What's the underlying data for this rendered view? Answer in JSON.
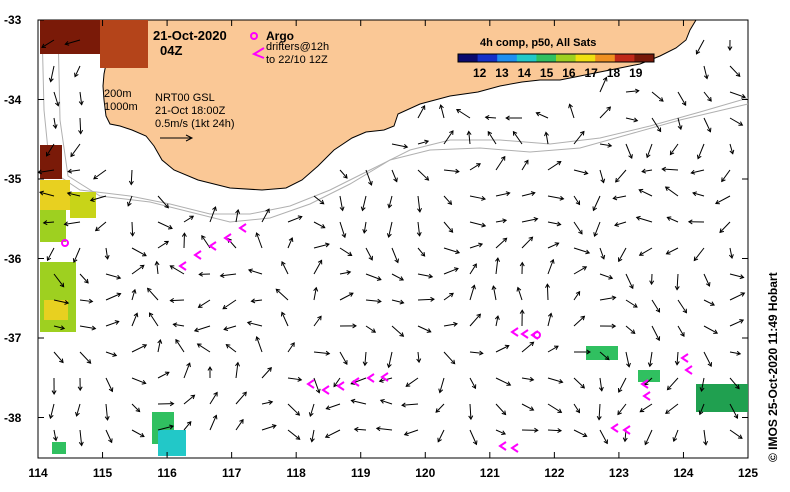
{
  "header": {
    "date": "21-Oct-2020",
    "time": "04Z"
  },
  "argo_legend": {
    "title": "Argo",
    "line1": "drifters@12h",
    "line2": "to 22/10 12Z"
  },
  "colorbar": {
    "title": "4h comp, p50, All Sats",
    "ticks": [
      "12",
      "13",
      "14",
      "15",
      "16",
      "17",
      "18",
      "19"
    ],
    "colors": [
      "#0a0a6e",
      "#1530c8",
      "#1f8ff0",
      "#22c8c8",
      "#30c060",
      "#9ed020",
      "#f0e010",
      "#f09020",
      "#c02818",
      "#781808"
    ]
  },
  "contour_legend": {
    "depth1": "200m",
    "depth2": "1000m"
  },
  "current_info": {
    "product": "NRT00 GSL",
    "datetime": "21-Oct 18:00Z",
    "scale": "0.5m/s (1kt 24h)"
  },
  "axes": {
    "x_ticks": [
      "114",
      "115",
      "116",
      "117",
      "118",
      "119",
      "120",
      "121",
      "122",
      "123",
      "124",
      "125"
    ],
    "y_ticks": [
      "-33",
      "-34",
      "-35",
      "-36",
      "-37",
      "-38"
    ]
  },
  "credit": "© IMOS 25-Oct-2020 11:49 Hobart",
  "colors": {
    "land": "#fac896",
    "argo": "#ff00ff",
    "contour": "#b0b0b0",
    "arrow": "#000000"
  }
}
